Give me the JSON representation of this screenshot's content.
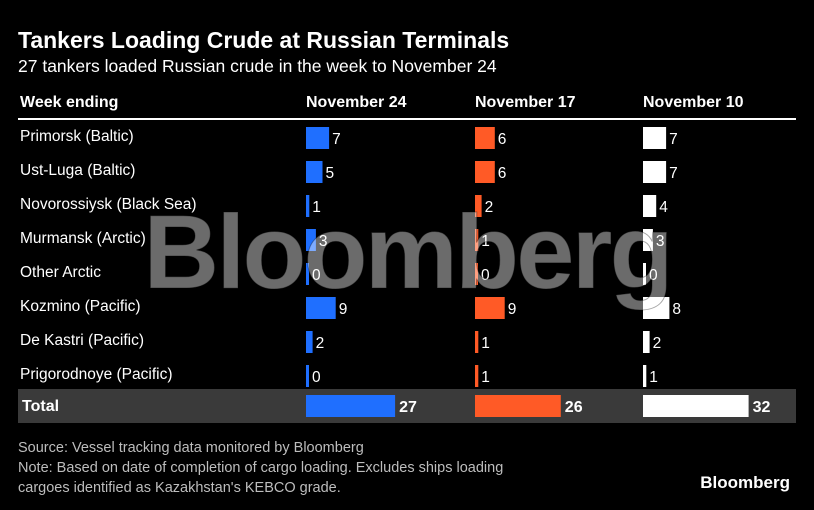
{
  "chart_data": {
    "type": "table",
    "title": "Tankers Loading Crude at Russian Terminals",
    "subtitle": "27 tankers loaded Russian crude in the week to November 24",
    "row_header": "Week ending",
    "columns": [
      "November 24",
      "November 17",
      "November 10"
    ],
    "column_colors": [
      "#1f6fff",
      "#ff5a26",
      "#ffffff"
    ],
    "rows": [
      {
        "label": "Primorsk (Baltic)",
        "values": [
          7,
          6,
          7
        ]
      },
      {
        "label": "Ust-Luga (Baltic)",
        "values": [
          5,
          6,
          7
        ]
      },
      {
        "label": "Novorossiysk (Black Sea)",
        "values": [
          1,
          2,
          4
        ]
      },
      {
        "label": "Murmansk (Arctic)",
        "values": [
          3,
          1,
          3
        ]
      },
      {
        "label": "Other Arctic",
        "values": [
          0,
          0,
          0
        ]
      },
      {
        "label": "Kozmino (Pacific)",
        "values": [
          9,
          9,
          8
        ]
      },
      {
        "label": "De Kastri (Pacific)",
        "values": [
          2,
          1,
          2
        ]
      },
      {
        "label": "Prigorodnoye (Pacific)",
        "values": [
          0,
          1,
          1
        ]
      }
    ],
    "total": {
      "label": "Total",
      "values": [
        27,
        26,
        32
      ]
    }
  },
  "source": "Source: Vessel tracking data monitored by Bloomberg",
  "note_lines": [
    "Note: Based on date of completion of cargo loading. Excludes ships loading",
    "cargoes identified as Kazakhstan's KEBCO grade."
  ],
  "brand": "Bloomberg",
  "watermark": "Bloomberg"
}
